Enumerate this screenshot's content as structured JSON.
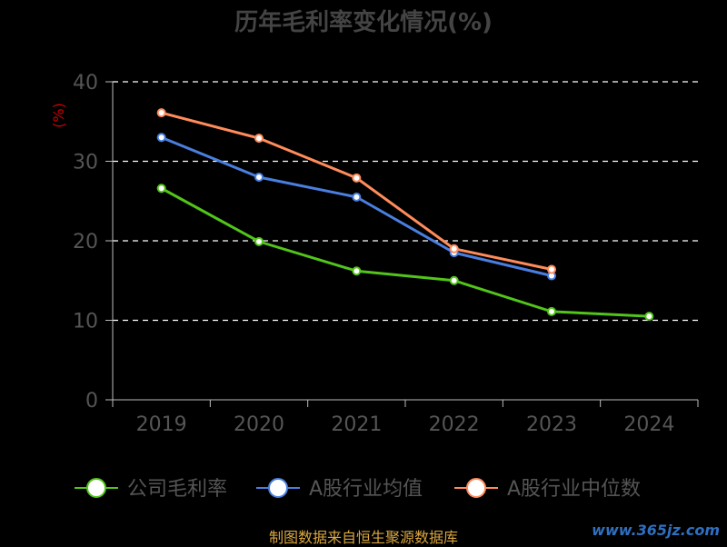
{
  "chart_data": {
    "type": "line",
    "title": "历年毛利率变化情况(%)",
    "ylabel": "(%)",
    "categories": [
      "2019",
      "2020",
      "2021",
      "2022",
      "2023",
      "2024"
    ],
    "ylim": [
      0,
      40
    ],
    "yticks": [
      0,
      10,
      20,
      30,
      40
    ],
    "grid": true,
    "legend_position": "bottom",
    "series": [
      {
        "name": "公司毛利率",
        "color": "#52c41a",
        "values": [
          26.6,
          19.9,
          16.2,
          15.0,
          11.1,
          10.5
        ]
      },
      {
        "name": "A股行业均值",
        "color": "#4a7fe0",
        "values": [
          33.0,
          28.0,
          25.5,
          18.5,
          15.6,
          null
        ]
      },
      {
        "name": "A股行业中位数",
        "color": "#ff8c5a",
        "values": [
          36.1,
          32.9,
          27.9,
          19.0,
          16.4,
          null
        ]
      }
    ]
  },
  "footer": {
    "source": "制图数据来自恒生聚源数据库"
  },
  "watermark": {
    "text": "www.365jz.com"
  },
  "colors": {
    "axis": "#bbbbbb",
    "grid": "#ffffff",
    "ylabel": "#cc0000",
    "title": "#444444",
    "footer": "#d9a640"
  }
}
